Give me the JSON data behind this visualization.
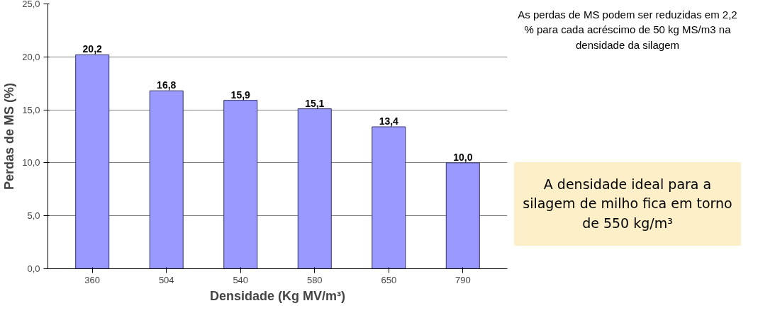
{
  "chart_data": {
    "type": "bar",
    "xlabel": "Densidade (Kg MV/m³)",
    "ylabel": "Perdas de MS (%)",
    "categories": [
      "360",
      "504",
      "540",
      "580",
      "650",
      "790"
    ],
    "values": [
      20.2,
      16.8,
      15.9,
      15.1,
      13.4,
      10.0
    ],
    "value_labels": [
      "20,2",
      "16,8",
      "15,9",
      "15,1",
      "13,4",
      "10,0"
    ],
    "color": "#9999ff",
    "ylim": [
      0,
      25
    ],
    "yticks": [
      {
        "value": 0,
        "label": "0,0"
      },
      {
        "value": 5,
        "label": "5,0"
      },
      {
        "value": 10,
        "label": "10,0"
      },
      {
        "value": 15,
        "label": "15,0"
      },
      {
        "value": 20,
        "label": "20,0"
      },
      {
        "value": 25,
        "label": "25,0"
      }
    ],
    "grid": "y",
    "annotations": [
      "As perdas de MS podem ser reduzidas em 2,2 % para cada acréscimo de 50 kg MS/m3 na densidade da silagem",
      "A densidade ideal para a silagem de milho fica em torno de 550 kg/m³"
    ]
  }
}
